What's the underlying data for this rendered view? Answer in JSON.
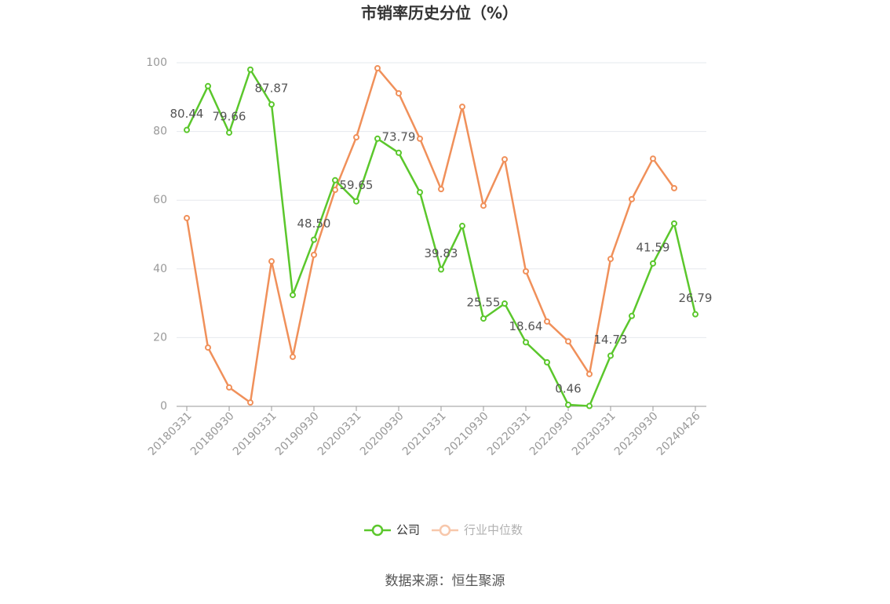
{
  "chart_data": {
    "type": "line",
    "title": "市销率历史分位（%）",
    "source": "数据来源：恒生聚源",
    "categories": [
      "20180331",
      null,
      "20180930",
      null,
      "20190331",
      null,
      "20190930",
      null,
      "20200331",
      null,
      "20200930",
      null,
      "20210331",
      null,
      "20210930",
      null,
      "20220331",
      null,
      "20220930",
      null,
      "20230331",
      null,
      "20230930",
      null,
      "20240426"
    ],
    "series": [
      {
        "name": "公司",
        "color": "#5bc72c",
        "values": [
          80.44,
          93.2,
          79.66,
          98.0,
          87.87,
          32.4,
          48.5,
          65.8,
          59.65,
          77.9,
          73.79,
          62.3,
          39.83,
          52.5,
          25.55,
          29.9,
          18.64,
          12.8,
          0.46,
          0.1,
          14.73,
          26.3,
          41.59,
          53.2,
          26.79
        ],
        "value_labels": [
          "80.44",
          null,
          "79.66",
          null,
          "87.87",
          null,
          "48.50",
          null,
          "59.65",
          null,
          "73.79",
          null,
          "39.83",
          null,
          "25.55",
          null,
          "18.64",
          null,
          "0.46",
          null,
          "14.73",
          null,
          "41.59",
          null,
          "26.79"
        ]
      },
      {
        "name": "行业中位数",
        "color": "#f0905a",
        "values": [
          54.8,
          17.1,
          5.5,
          1.1,
          42.2,
          14.4,
          44.1,
          63.0,
          78.3,
          98.4,
          91.1,
          77.9,
          63.2,
          87.2,
          58.4,
          71.9,
          39.3,
          24.7,
          18.9,
          9.4,
          42.9,
          60.3,
          72.1,
          63.5,
          null
        ]
      }
    ],
    "ylim": [
      0,
      100
    ],
    "yticks": [
      0,
      20,
      40,
      60,
      80,
      100
    ],
    "grid": true
  }
}
